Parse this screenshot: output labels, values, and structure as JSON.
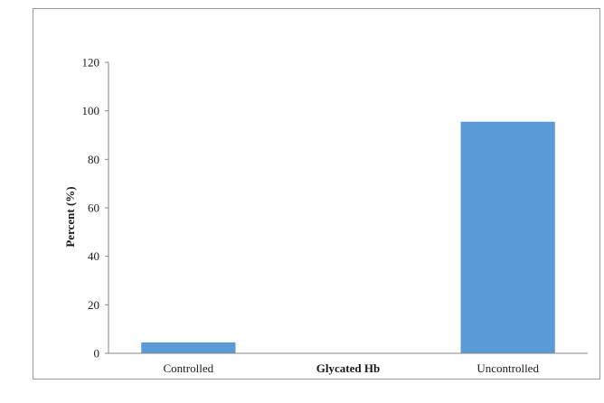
{
  "chart_data": {
    "type": "bar",
    "categories": [
      "Controlled",
      "Uncontrolled"
    ],
    "values": [
      4.5,
      95.5
    ],
    "xlabel": "Glycated Hb",
    "ylabel": "Percent (%)",
    "ylim": [
      0,
      120
    ],
    "yticks": [
      0,
      20,
      40,
      60,
      80,
      100,
      120
    ],
    "grid": false,
    "legend": "none",
    "bar_color": "#5b9bd5",
    "axis_color": "#868686",
    "frame_color": "#9a9a9a"
  }
}
